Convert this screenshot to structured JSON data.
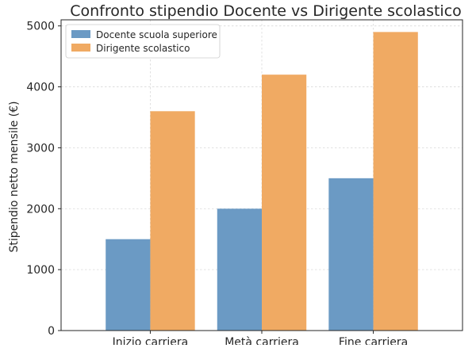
{
  "chart_data": {
    "type": "bar",
    "title": "Confronto stipendio Docente vs Dirigente scolastico",
    "xlabel": "",
    "ylabel": "Stipendio netto mensile (€)",
    "categories": [
      "Inizio carriera",
      "Metà carriera",
      "Fine carriera"
    ],
    "series": [
      {
        "name": "Docente scuola superiore",
        "color": "#6b9ac4",
        "values": [
          1500,
          2000,
          2500
        ]
      },
      {
        "name": "Dirigente scolastico",
        "color": "#f0aa63",
        "values": [
          3600,
          4200,
          4900
        ]
      }
    ],
    "ylim": [
      0,
      5100
    ],
    "yticks": [
      0,
      1000,
      2000,
      3000,
      4000,
      5000
    ],
    "grid": true,
    "legend_position": "top-left"
  }
}
